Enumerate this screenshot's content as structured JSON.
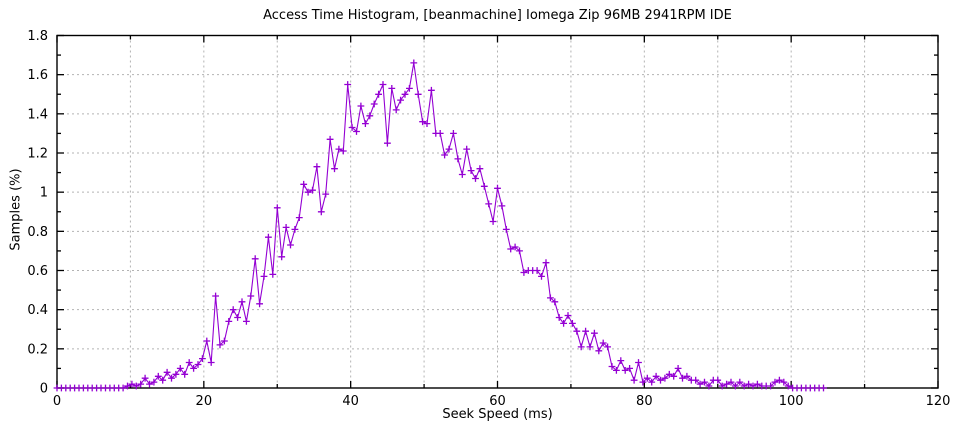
{
  "chart_data": {
    "type": "line",
    "title": "Access Time Histogram, [beanmachine] Iomega Zip 96MB 2941RPM IDE",
    "xlabel": "Seek Speed (ms)",
    "ylabel": "Samples (%)",
    "xlim": [
      0,
      120
    ],
    "ylim": [
      0,
      1.8
    ],
    "xtick_values": [
      0,
      20,
      40,
      60,
      80,
      100,
      120
    ],
    "xtick_labels": [
      "0",
      "20",
      "40",
      "60",
      "80",
      "100",
      "120"
    ],
    "ytick_values": [
      0,
      0.2,
      0.4,
      0.6,
      0.8,
      1,
      1.2,
      1.4,
      1.6,
      1.8
    ],
    "ytick_labels": [
      "0",
      "0.2",
      "0.4",
      "0.6",
      "0.8",
      "1",
      "1.2",
      "1.4",
      "1.6",
      "1.8"
    ],
    "x_minor_tick_step": 10,
    "y_minor_tick_step": 0.1,
    "x_gridlines": [
      10,
      20,
      30,
      40,
      50,
      60,
      70,
      80,
      90,
      100,
      110
    ],
    "y_gridlines": [
      0.2,
      0.4,
      0.6,
      0.8,
      1.0,
      1.2,
      1.4,
      1.6
    ],
    "grid": "dashed",
    "legend": "none",
    "colors": {
      "line": "#9400d3",
      "grid": "#b3b3b3",
      "border": "#000000",
      "text": "#000000",
      "background": "#ffffff"
    },
    "series": [
      {
        "name": "samples",
        "style": "linespoints-plus",
        "color": "#9400d3",
        "x_start": 0,
        "x_step": 0.6,
        "x_end": 104.4,
        "values": [
          0,
          0,
          0,
          0,
          0,
          0,
          0,
          0,
          0,
          0,
          0,
          0,
          0,
          0,
          0,
          0,
          0.01,
          0.02,
          0.01,
          0.02,
          0.05,
          0.02,
          0.03,
          0.06,
          0.04,
          0.08,
          0.05,
          0.07,
          0.1,
          0.07,
          0.13,
          0.1,
          0.12,
          0.15,
          0.24,
          0.13,
          0.47,
          0.22,
          0.24,
          0.34,
          0.4,
          0.36,
          0.44,
          0.34,
          0.47,
          0.66,
          0.43,
          0.57,
          0.77,
          0.58,
          0.92,
          0.67,
          0.82,
          0.73,
          0.81,
          0.87,
          1.04,
          1.0,
          1.01,
          1.13,
          0.9,
          0.99,
          1.27,
          1.12,
          1.22,
          1.21,
          1.55,
          1.33,
          1.31,
          1.44,
          1.35,
          1.39,
          1.45,
          1.5,
          1.55,
          1.25,
          1.53,
          1.42,
          1.47,
          1.5,
          1.53,
          1.66,
          1.5,
          1.36,
          1.35,
          1.52,
          1.3,
          1.3,
          1.19,
          1.22,
          1.3,
          1.17,
          1.09,
          1.22,
          1.11,
          1.07,
          1.12,
          1.03,
          0.94,
          0.85,
          1.02,
          0.93,
          0.81,
          0.71,
          0.72,
          0.7,
          0.59,
          0.6,
          0.6,
          0.6,
          0.57,
          0.64,
          0.46,
          0.44,
          0.36,
          0.33,
          0.37,
          0.33,
          0.29,
          0.21,
          0.29,
          0.21,
          0.28,
          0.19,
          0.23,
          0.21,
          0.11,
          0.09,
          0.14,
          0.09,
          0.1,
          0.04,
          0.13,
          0.03,
          0.05,
          0.03,
          0.06,
          0.04,
          0.05,
          0.07,
          0.06,
          0.1,
          0.05,
          0.06,
          0.04,
          0.04,
          0.02,
          0.03,
          0.01,
          0.04,
          0.04,
          0.01,
          0.02,
          0.03,
          0.01,
          0.03,
          0.01,
          0.02,
          0.01,
          0.02,
          0.01,
          0.01,
          0.01,
          0.03,
          0.04,
          0.03,
          0.01,
          0,
          0,
          0,
          0,
          0,
          0,
          0,
          0
        ]
      }
    ]
  }
}
